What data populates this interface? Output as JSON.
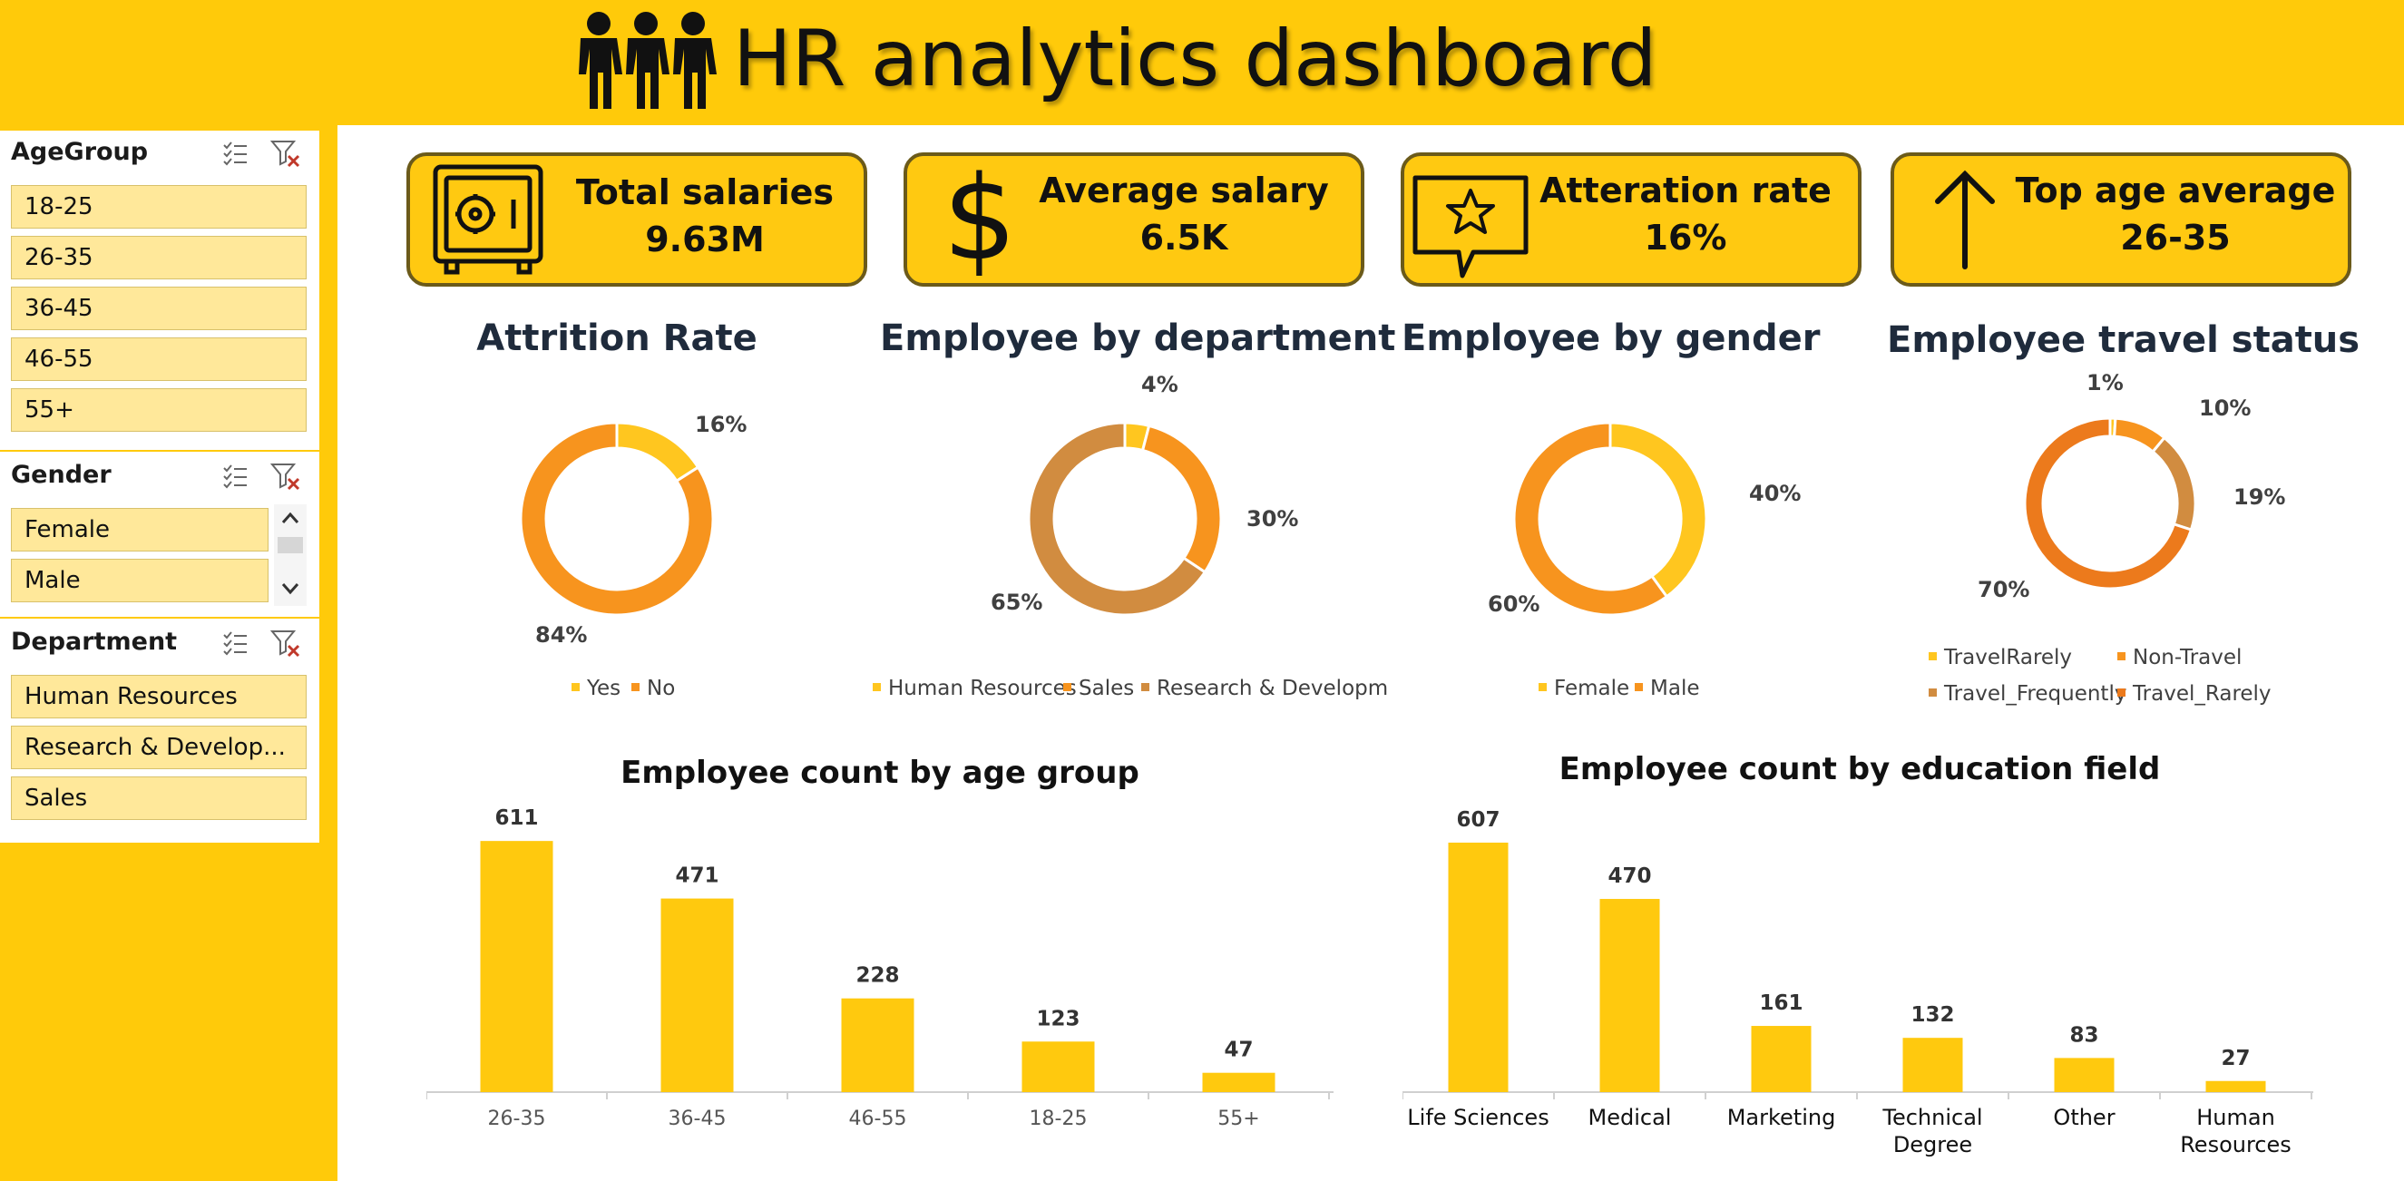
{
  "header": {
    "title": "HR analytics dashboard",
    "icon": "people-group-icon"
  },
  "slicers": {
    "age_group": {
      "title": "AgeGroup",
      "items": [
        "18-25",
        "26-35",
        "36-45",
        "46-55",
        "55+"
      ]
    },
    "gender": {
      "title": "Gender",
      "items": [
        "Female",
        "Male"
      ]
    },
    "department": {
      "title": "Department",
      "items": [
        "Human Resources",
        "Research & Develop...",
        "Sales"
      ]
    }
  },
  "kpis": [
    {
      "label": "Total salaries",
      "value": "9.63M",
      "icon": "safe-icon"
    },
    {
      "label": "Average salary",
      "value": "6.5K",
      "icon": "dollar-icon"
    },
    {
      "label": "Atteration rate",
      "value": "16%",
      "icon": "star-speech-bubble-icon"
    },
    {
      "label": "Top age average",
      "value": "26-35",
      "icon": "arrow-up-icon"
    }
  ],
  "colors": {
    "background": "#FFCA0A",
    "panel": "#FFFFFF",
    "kpi_fill": "#FFC911",
    "slicer_item": "#FFE89A",
    "bar": "#FFC90E"
  },
  "chart_data": [
    {
      "type": "pie",
      "title": "Attrition Rate",
      "categories": [
        "Yes",
        "No"
      ],
      "values": [
        16,
        84
      ],
      "labels": [
        "16%",
        "84%"
      ],
      "colors": [
        "#FFC61F",
        "#F7941E"
      ],
      "legend": "bottom"
    },
    {
      "type": "pie",
      "title": "Employee by department",
      "categories": [
        "Human Resources",
        "Sales",
        "Research & Developm"
      ],
      "values": [
        4,
        30,
        65
      ],
      "labels": [
        "4%",
        "30%",
        "65%"
      ],
      "colors": [
        "#FFC61F",
        "#F7941E",
        "#D18C40"
      ],
      "legend": "bottom"
    },
    {
      "type": "pie",
      "title": "Employee by gender",
      "categories": [
        "Female",
        "Male"
      ],
      "values": [
        40,
        60
      ],
      "labels": [
        "40%",
        "60%"
      ],
      "colors": [
        "#FFC61F",
        "#F7941E"
      ],
      "legend": "bottom"
    },
    {
      "type": "pie",
      "title": "Employee travel status",
      "categories": [
        "TravelRarely",
        "Non-Travel",
        "Travel_Frequently",
        "Travel_Rarely"
      ],
      "values": [
        1,
        10,
        19,
        70
      ],
      "labels": [
        "1%",
        "10%",
        "19%",
        "70%"
      ],
      "colors": [
        "#FFC61F",
        "#F7941E",
        "#D18C40",
        "#EC7A1C"
      ],
      "legend": "bottom"
    },
    {
      "type": "bar",
      "title": "Employee count by age group",
      "categories": [
        "26-35",
        "36-45",
        "46-55",
        "18-25",
        "55+"
      ],
      "values": [
        611,
        471,
        228,
        123,
        47
      ],
      "ylim": [
        0,
        640
      ]
    },
    {
      "type": "bar",
      "title": "Employee count by education field",
      "categories": [
        "Life Sciences",
        "Medical",
        "Marketing",
        "Technical Degree",
        "Other",
        "Human Resources"
      ],
      "category_lines": [
        [
          "Life Sciences"
        ],
        [
          "Medical"
        ],
        [
          "Marketing"
        ],
        [
          "Technical",
          "Degree"
        ],
        [
          "Other"
        ],
        [
          "Human",
          "Resources"
        ]
      ],
      "values": [
        607,
        470,
        161,
        132,
        83,
        27
      ],
      "ylim": [
        0,
        640
      ]
    }
  ]
}
